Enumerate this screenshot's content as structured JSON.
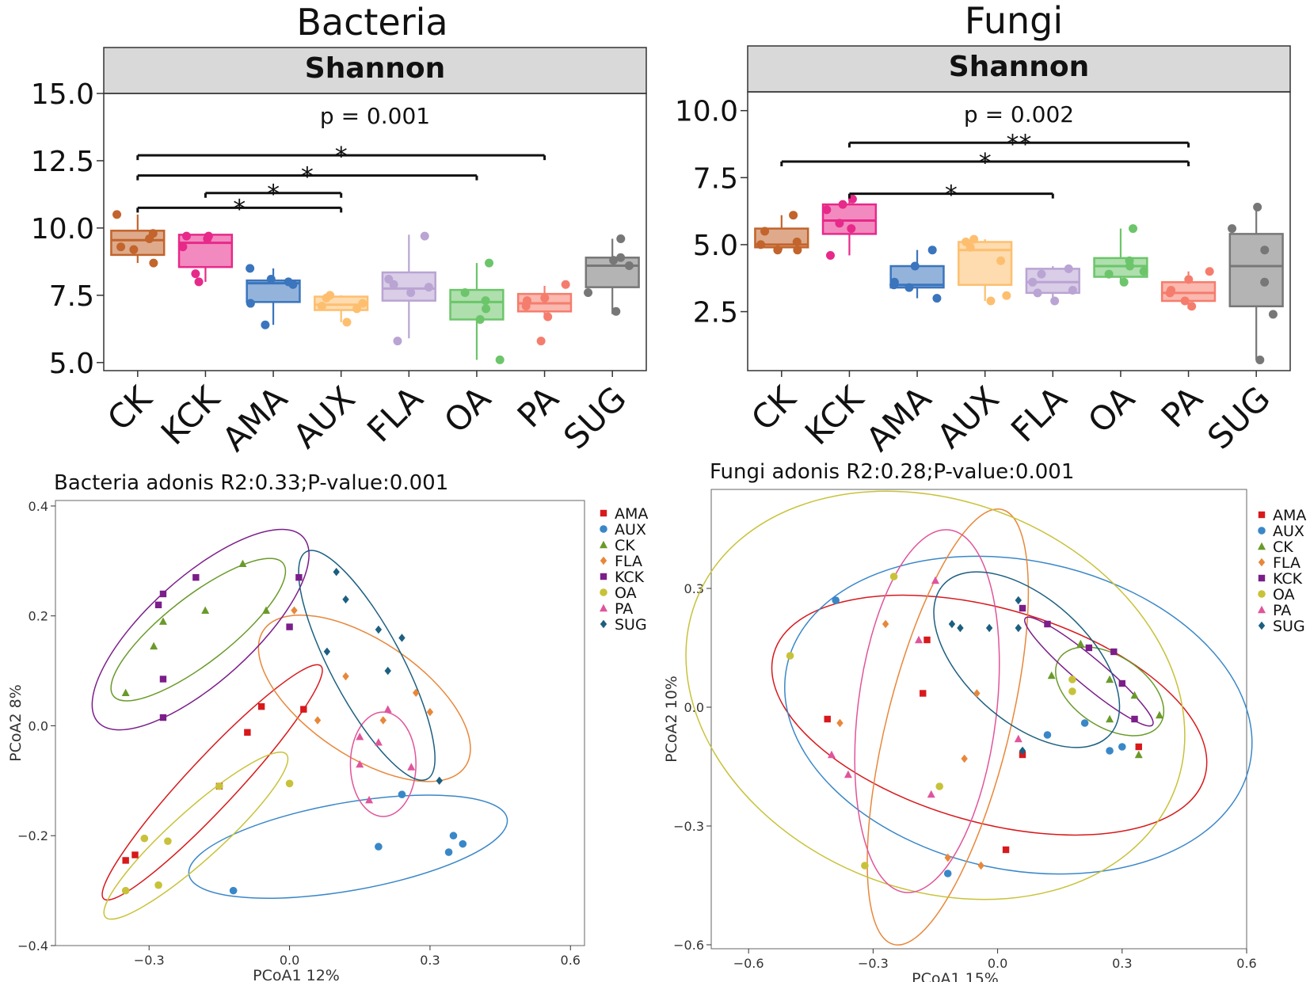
{
  "chart_data": [
    {
      "type": "box",
      "title": "Bacteria",
      "facet_label": "Shannon",
      "p_label": "p = 0.001",
      "categories": [
        "CK",
        "KCK",
        "AMA",
        "AUX",
        "FLA",
        "OA",
        "PA",
        "SUG"
      ],
      "colors": [
        "#c2642c",
        "#e7298a",
        "#3a75bd",
        "#fdbf6f",
        "#b9a4d3",
        "#6cc56a",
        "#f57d6d",
        "#777777"
      ],
      "ylim": [
        4.7,
        15.0
      ],
      "yticks": [
        5.0,
        7.5,
        10.0,
        12.5,
        15.0
      ],
      "ytick_labels": [
        "5.0",
        "7.5",
        "10.0",
        "12.5",
        "15.0"
      ],
      "boxes": [
        {
          "low": 8.7,
          "q1": 9.0,
          "median": 9.55,
          "q3": 9.9,
          "high": 10.5
        },
        {
          "low": 8.0,
          "q1": 8.55,
          "median": 9.45,
          "q3": 9.75,
          "high": 9.8
        },
        {
          "low": 6.4,
          "q1": 7.25,
          "median": 7.95,
          "q3": 8.05,
          "high": 8.5
        },
        {
          "low": 6.5,
          "q1": 6.95,
          "median": 7.15,
          "q3": 7.45,
          "high": 7.5
        },
        {
          "low": 5.9,
          "q1": 7.3,
          "median": 7.75,
          "q3": 8.35,
          "high": 9.75
        },
        {
          "low": 5.1,
          "q1": 6.6,
          "median": 7.25,
          "q3": 7.7,
          "high": 8.7
        },
        {
          "low": 6.7,
          "q1": 6.9,
          "median": 7.2,
          "q3": 7.55,
          "high": 7.85
        },
        {
          "low": 6.8,
          "q1": 7.8,
          "median": 8.6,
          "q3": 8.9,
          "high": 9.6
        }
      ],
      "points": [
        [
          9.6,
          10.5,
          9.2,
          8.7,
          9.3,
          9.8
        ],
        [
          9.7,
          8.0,
          8.3,
          9.6,
          9.7,
          9.3
        ],
        [
          8.1,
          6.4,
          7.9,
          7.2,
          8.0,
          8.5
        ],
        [
          7.5,
          7.2,
          6.5,
          7.1,
          7.4,
          7.0
        ],
        [
          9.7,
          7.6,
          7.8,
          5.8,
          7.9,
          8.1
        ],
        [
          8.7,
          6.6,
          7.0,
          5.1,
          7.3,
          7.6
        ],
        [
          7.4,
          6.7,
          7.1,
          5.8,
          7.9,
          7.3
        ],
        [
          8.8,
          6.9,
          8.6,
          7.6,
          9.6,
          8.9
        ]
      ],
      "significance": [
        {
          "from": "CK",
          "to": "PA",
          "y": 12.7,
          "label": "*"
        },
        {
          "from": "CK",
          "to": "OA",
          "y": 11.95,
          "label": "*"
        },
        {
          "from": "KCK",
          "to": "AUX",
          "y": 11.3,
          "label": "*"
        },
        {
          "from": "CK",
          "to": "AUX",
          "y": 10.75,
          "label": "*"
        }
      ]
    },
    {
      "type": "box",
      "title": "Fungi",
      "facet_label": "Shannon",
      "p_label": "p = 0.002",
      "categories": [
        "CK",
        "KCK",
        "AMA",
        "AUX",
        "FLA",
        "OA",
        "PA",
        "SUG"
      ],
      "colors": [
        "#c2642c",
        "#e7298a",
        "#3a75bd",
        "#fdbf6f",
        "#b9a4d3",
        "#6cc56a",
        "#f57d6d",
        "#777777"
      ],
      "ylim": [
        0.3,
        10.7
      ],
      "yticks": [
        2.5,
        5.0,
        7.5,
        10.0
      ],
      "ytick_labels": [
        "2.5",
        "5.0",
        "7.5",
        "10.0"
      ],
      "boxes": [
        {
          "low": 4.8,
          "q1": 4.9,
          "median": 5.0,
          "q3": 5.6,
          "high": 6.1
        },
        {
          "low": 4.6,
          "q1": 5.4,
          "median": 5.9,
          "q3": 6.5,
          "high": 6.7
        },
        {
          "low": 3.0,
          "q1": 3.4,
          "median": 3.5,
          "q3": 4.2,
          "high": 4.8
        },
        {
          "low": 2.9,
          "q1": 3.5,
          "median": 4.8,
          "q3": 5.1,
          "high": 5.2
        },
        {
          "low": 2.8,
          "q1": 3.2,
          "median": 3.6,
          "q3": 4.1,
          "high": 4.2
        },
        {
          "low": 3.6,
          "q1": 3.8,
          "median": 4.2,
          "q3": 4.5,
          "high": 5.6
        },
        {
          "low": 2.6,
          "q1": 2.9,
          "median": 3.2,
          "q3": 3.6,
          "high": 4.0
        },
        {
          "low": 0.7,
          "q1": 2.7,
          "median": 4.2,
          "q3": 5.4,
          "high": 6.4
        }
      ],
      "points": [
        [
          6.1,
          5.0,
          4.8,
          4.8,
          5.5,
          5.1
        ],
        [
          6.7,
          6.5,
          5.8,
          5.6,
          4.6,
          6.3
        ],
        [
          4.2,
          3.4,
          3.0,
          3.6,
          4.8,
          3.5
        ],
        [
          5.2,
          3.1,
          2.9,
          5.1,
          4.9,
          4.4
        ],
        [
          4.1,
          2.9,
          3.3,
          3.9,
          3.2,
          3.6
        ],
        [
          5.6,
          3.6,
          4.2,
          4.0,
          4.4,
          3.9
        ],
        [
          3.7,
          2.7,
          3.2,
          2.9,
          4.0,
          3.3
        ],
        [
          6.4,
          0.7,
          2.4,
          5.6,
          4.8,
          3.6
        ]
      ],
      "significance": [
        {
          "from": "KCK",
          "to": "PA",
          "y": 8.8,
          "label": "**"
        },
        {
          "from": "CK",
          "to": "PA",
          "y": 8.1,
          "label": "*"
        },
        {
          "from": "KCK",
          "to": "FLA",
          "y": 6.9,
          "label": "*"
        }
      ]
    },
    {
      "type": "scatter",
      "title": "Bacteria adonis R2:0.33;P-value:0.001",
      "xlabel": "PCoA1 12%",
      "ylabel": "PCoA2 8%",
      "xlim": [
        -0.5,
        0.63
      ],
      "ylim": [
        -0.4,
        0.41
      ],
      "xticks": [
        -0.3,
        0.0,
        0.3,
        0.6
      ],
      "xtick_labels": [
        "−0.3",
        "0.0",
        "0.3",
        "0.6"
      ],
      "yticks": [
        -0.4,
        -0.2,
        0.0,
        0.2,
        0.4
      ],
      "ytick_labels": [
        "−0.4",
        "−0.2",
        "0.0",
        "0.2",
        "0.4"
      ],
      "legend_position": "right",
      "series": [
        {
          "name": "AMA",
          "color": "#d7191c",
          "shape": "square",
          "points": [
            [
              -0.35,
              -0.245
            ],
            [
              -0.33,
              -0.235
            ],
            [
              -0.15,
              -0.11
            ],
            [
              -0.09,
              -0.012
            ],
            [
              -0.06,
              0.035
            ],
            [
              0.03,
              0.03
            ]
          ],
          "ellipse": {
            "cx": -0.165,
            "cy": -0.103,
            "rx": 0.34,
            "ry": 0.045,
            "angle": 47
          }
        },
        {
          "name": "AUX",
          "color": "#3a87c8",
          "shape": "circle",
          "points": [
            [
              -0.12,
              -0.3
            ],
            [
              0.19,
              -0.22
            ],
            [
              0.24,
              -0.125
            ],
            [
              0.34,
              -0.23
            ],
            [
              0.35,
              -0.2
            ],
            [
              0.37,
              -0.215
            ]
          ],
          "ellipse": {
            "cx": 0.125,
            "cy": -0.22,
            "rx": 0.345,
            "ry": 0.08,
            "angle": 10
          }
        },
        {
          "name": "CK",
          "color": "#6a9a2a",
          "shape": "triangle",
          "points": [
            [
              -0.35,
              0.06
            ],
            [
              -0.29,
              0.145
            ],
            [
              -0.27,
              0.19
            ],
            [
              -0.18,
              0.21
            ],
            [
              -0.1,
              0.295
            ],
            [
              -0.05,
              0.21
            ]
          ],
          "ellipse": {
            "cx": -0.195,
            "cy": 0.175,
            "rx": 0.23,
            "ry": 0.06,
            "angle": 38
          }
        },
        {
          "name": "FLA",
          "color": "#e8873a",
          "shape": "diamond",
          "points": [
            [
              0.01,
              0.21
            ],
            [
              0.06,
              0.01
            ],
            [
              0.2,
              0.01
            ],
            [
              0.27,
              0.06
            ],
            [
              0.3,
              0.025
            ],
            [
              0.12,
              0.09
            ]
          ],
          "ellipse": {
            "cx": 0.16,
            "cy": 0.05,
            "rx": 0.26,
            "ry": 0.105,
            "angle": -34
          }
        },
        {
          "name": "KCK",
          "color": "#7b1e8a",
          "shape": "square",
          "points": [
            [
              -0.28,
              0.22
            ],
            [
              -0.27,
              0.24
            ],
            [
              -0.2,
              0.27
            ],
            [
              -0.27,
              0.085
            ],
            [
              -0.27,
              0.015
            ],
            [
              0.0,
              0.18
            ],
            [
              0.02,
              0.27
            ]
          ],
          "ellipse": {
            "cx": -0.19,
            "cy": 0.175,
            "rx": 0.295,
            "ry": 0.095,
            "angle": 42
          }
        },
        {
          "name": "OA",
          "color": "#c8c23a",
          "shape": "circle",
          "points": [
            [
              -0.35,
              -0.3
            ],
            [
              -0.31,
              -0.205
            ],
            [
              -0.28,
              -0.29
            ],
            [
              -0.26,
              -0.21
            ],
            [
              -0.15,
              -0.11
            ],
            [
              0.0,
              -0.105
            ]
          ],
          "ellipse": {
            "cx": -0.2,
            "cy": -0.2,
            "rx": 0.26,
            "ry": 0.045,
            "angle": 42
          }
        },
        {
          "name": "PA",
          "color": "#e0559a",
          "shape": "triangle",
          "points": [
            [
              0.15,
              -0.02
            ],
            [
              0.19,
              -0.03
            ],
            [
              0.21,
              0.03
            ],
            [
              0.15,
              -0.07
            ],
            [
              0.26,
              -0.075
            ],
            [
              0.17,
              -0.135
            ]
          ],
          "ellipse": {
            "cx": 0.2,
            "cy": -0.07,
            "rx": 0.07,
            "ry": 0.095,
            "angle": 0
          }
        },
        {
          "name": "SUG",
          "color": "#1c5f80",
          "shape": "diamond",
          "points": [
            [
              0.1,
              0.28
            ],
            [
              0.12,
              0.23
            ],
            [
              0.19,
              0.175
            ],
            [
              0.24,
              0.16
            ],
            [
              0.21,
              0.1
            ],
            [
              0.08,
              0.135
            ],
            [
              0.32,
              -0.1
            ]
          ],
          "ellipse": {
            "cx": 0.165,
            "cy": 0.11,
            "rx": 0.275,
            "ry": 0.065,
            "angle": -62
          }
        }
      ]
    },
    {
      "type": "scatter",
      "title": "Fungi adonis R2:0.28;P-value:0.001",
      "xlabel": "PCoA1 15%",
      "ylabel": "PCoA2 10%",
      "xlim": [
        -0.69,
        0.6
      ],
      "ylim": [
        -0.61,
        0.55
      ],
      "xticks": [
        -0.6,
        -0.3,
        0.0,
        0.3,
        0.6
      ],
      "xtick_labels": [
        "−0.6",
        "−0.3",
        "0.0",
        "0.3",
        "0.6"
      ],
      "yticks": [
        -0.6,
        -0.3,
        0.0,
        0.3
      ],
      "ytick_labels": [
        "−0.6",
        "−0.3",
        "0.0",
        "0.3"
      ],
      "legend_position": "right",
      "series": [
        {
          "name": "AMA",
          "color": "#d7191c",
          "shape": "square",
          "points": [
            [
              -0.41,
              -0.03
            ],
            [
              -0.17,
              0.17
            ],
            [
              -0.18,
              0.035
            ],
            [
              0.06,
              -0.12
            ],
            [
              0.02,
              -0.36
            ],
            [
              0.34,
              -0.1
            ]
          ],
          "ellipse": {
            "cx": -0.02,
            "cy": -0.02,
            "rx": 0.54,
            "ry": 0.27,
            "angle": -16
          }
        },
        {
          "name": "AUX",
          "color": "#3a87c8",
          "shape": "circle",
          "points": [
            [
              -0.39,
              0.27
            ],
            [
              -0.12,
              -0.42
            ],
            [
              0.12,
              -0.07
            ],
            [
              0.21,
              -0.04
            ],
            [
              0.27,
              -0.11
            ],
            [
              0.3,
              -0.1
            ]
          ],
          "ellipse": {
            "cx": 0.05,
            "cy": -0.02,
            "rx": 0.57,
            "ry": 0.39,
            "angle": -12
          }
        },
        {
          "name": "CK",
          "color": "#6a9a2a",
          "shape": "triangle",
          "points": [
            [
              0.13,
              0.08
            ],
            [
              0.2,
              0.16
            ],
            [
              0.27,
              0.07
            ],
            [
              0.27,
              -0.03
            ],
            [
              0.33,
              0.03
            ],
            [
              0.34,
              -0.12
            ],
            [
              0.39,
              -0.02
            ]
          ],
          "ellipse": {
            "cx": 0.27,
            "cy": 0.04,
            "rx": 0.145,
            "ry": 0.09,
            "angle": -33
          }
        },
        {
          "name": "FLA",
          "color": "#e8873a",
          "shape": "diamond",
          "points": [
            [
              -0.27,
              0.21
            ],
            [
              -0.38,
              -0.04
            ],
            [
              -0.05,
              0.035
            ],
            [
              -0.08,
              -0.13
            ],
            [
              -0.12,
              -0.38
            ],
            [
              -0.04,
              -0.4
            ]
          ],
          "ellipse": {
            "cx": -0.12,
            "cy": -0.05,
            "rx": 0.54,
            "ry": 0.155,
            "angle": 76
          }
        },
        {
          "name": "KCK",
          "color": "#7b1e8a",
          "shape": "square",
          "points": [
            [
              0.06,
              0.25
            ],
            [
              0.12,
              0.21
            ],
            [
              0.22,
              0.15
            ],
            [
              0.28,
              0.14
            ],
            [
              0.3,
              0.06
            ],
            [
              0.33,
              -0.03
            ]
          ],
          "ellipse": {
            "cx": 0.22,
            "cy": 0.09,
            "rx": 0.2,
            "ry": 0.035,
            "angle": -40
          }
        },
        {
          "name": "OA",
          "color": "#c8c23a",
          "shape": "circle",
          "points": [
            [
              -0.5,
              0.13
            ],
            [
              -0.25,
              0.33
            ],
            [
              -0.32,
              -0.4
            ],
            [
              -0.14,
              -0.2
            ],
            [
              0.18,
              0.07
            ],
            [
              0.18,
              0.04
            ]
          ],
          "ellipse": {
            "cx": -0.15,
            "cy": 0.03,
            "rx": 0.62,
            "ry": 0.49,
            "angle": -22
          }
        },
        {
          "name": "PA",
          "color": "#e0559a",
          "shape": "triangle",
          "points": [
            [
              -0.15,
              0.32
            ],
            [
              -0.19,
              0.17
            ],
            [
              -0.4,
              -0.12
            ],
            [
              -0.36,
              -0.17
            ],
            [
              -0.16,
              -0.22
            ],
            [
              0.05,
              -0.08
            ]
          ],
          "ellipse": {
            "cx": -0.17,
            "cy": -0.01,
            "rx": 0.44,
            "ry": 0.175,
            "angle": 83
          }
        },
        {
          "name": "SUG",
          "color": "#1c5f80",
          "shape": "diamond",
          "points": [
            [
              0.05,
              0.27
            ],
            [
              -0.11,
              0.21
            ],
            [
              -0.09,
              0.2
            ],
            [
              -0.02,
              0.2
            ],
            [
              0.05,
              0.2
            ],
            [
              0.06,
              -0.11
            ]
          ],
          "ellipse": {
            "cx": 0.07,
            "cy": 0.12,
            "rx": 0.27,
            "ry": 0.155,
            "angle": -42
          }
        }
      ]
    }
  ]
}
